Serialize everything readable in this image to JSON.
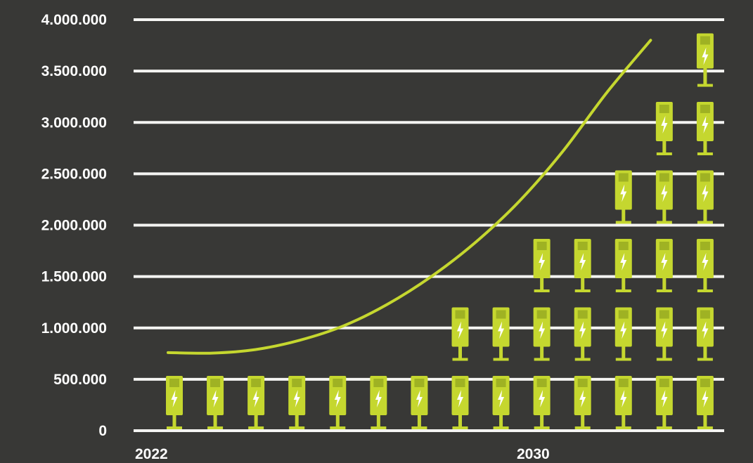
{
  "chart_data": {
    "type": "pictograph",
    "title": "",
    "xlabel": "",
    "ylabel": "",
    "ylim": [
      0,
      4000000
    ],
    "y_ticks": [
      0,
      500000,
      1000000,
      1500000,
      2000000,
      2500000,
      3000000,
      3500000,
      4000000
    ],
    "y_tick_labels": [
      "0",
      "500.000",
      "1.000.000",
      "1.500.000",
      "2.000.000",
      "2.500.000",
      "3.000.000",
      "3.500.000",
      "4.000.000"
    ],
    "x_labels_shown": [
      "2022",
      "2030"
    ],
    "grid": true,
    "columns": [
      {
        "icons": 1
      },
      {
        "icons": 1
      },
      {
        "icons": 1
      },
      {
        "icons": 1
      },
      {
        "icons": 1
      },
      {
        "icons": 1
      },
      {
        "icons": 1
      },
      {
        "icons": 2
      },
      {
        "icons": 2
      },
      {
        "icons": 3
      },
      {
        "icons": 3
      },
      {
        "icons": 4
      },
      {
        "icons": 5
      },
      {
        "icons": 6
      }
    ],
    "last_column_partial_icon": true,
    "curve": {
      "color": "#c5d72f",
      "points": [
        [
          0,
          760000
        ],
        [
          1,
          755000
        ],
        [
          2,
          790000
        ],
        [
          3,
          880000
        ],
        [
          4,
          1020000
        ],
        [
          5,
          1230000
        ],
        [
          6,
          1500000
        ],
        [
          7,
          1830000
        ],
        [
          8,
          2230000
        ],
        [
          9,
          2720000
        ],
        [
          10,
          3290000
        ],
        [
          11,
          3800000
        ]
      ]
    },
    "icon_name": "ev-charger-icon",
    "colors": {
      "background": "#383836",
      "grid": "#f4f4f2",
      "icon": "#c5d72f",
      "icon_dark": "#9fb223",
      "text": "#ffffff"
    }
  }
}
